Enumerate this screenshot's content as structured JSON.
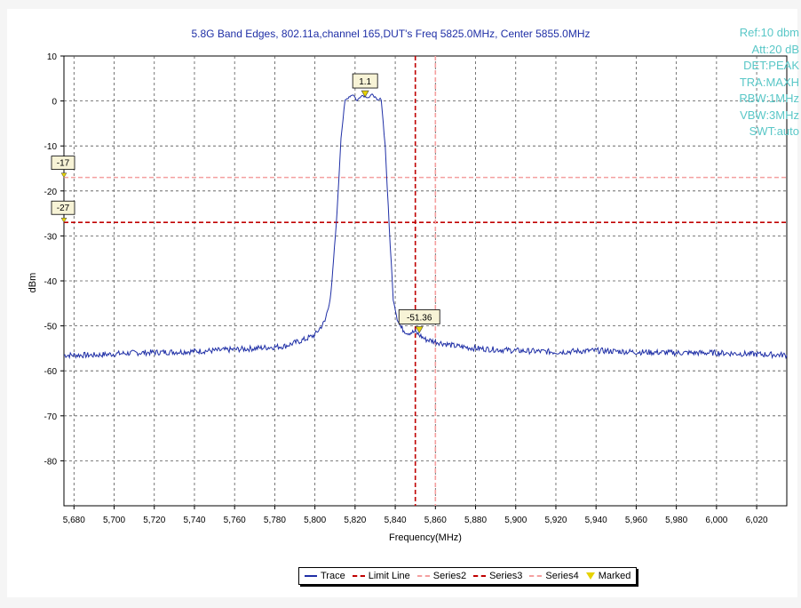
{
  "chart_data": {
    "type": "line",
    "title": "5.8G Band Edges, 802.11a,channel 165,DUT's Freq 5825.0MHz, Center 5855.0MHz",
    "xlabel": "Frequency(MHz)",
    "ylabel": "dBm",
    "xlim": [
      5675,
      6035
    ],
    "ylim": [
      -90,
      10
    ],
    "xticks": [
      5680,
      5700,
      5720,
      5740,
      5760,
      5780,
      5800,
      5820,
      5840,
      5860,
      5880,
      5900,
      5920,
      5940,
      5960,
      5980,
      6000,
      6020
    ],
    "xtick_labels": [
      "5,680",
      "5,700",
      "5,720",
      "5,740",
      "5,760",
      "5,780",
      "5,800",
      "5,820",
      "5,840",
      "5,860",
      "5,880",
      "5,900",
      "5,920",
      "5,940",
      "5,960",
      "5,980",
      "6,000",
      "6,020"
    ],
    "yticks": [
      10,
      0,
      -10,
      -20,
      -30,
      -40,
      -50,
      -60,
      -70,
      -80
    ],
    "ytick_labels": [
      "10",
      "0",
      "-10",
      "-20",
      "-30",
      "-40",
      "-50",
      "-60",
      "-70",
      "-80"
    ],
    "grid": true,
    "series": [
      {
        "name": "Trace",
        "color": "#1f2fa6",
        "x": [
          5675,
          5690,
          5710,
          5730,
          5750,
          5770,
          5785,
          5795,
          5800,
          5805,
          5808,
          5811,
          5813,
          5815,
          5817,
          5819,
          5821,
          5823,
          5825,
          5827,
          5829,
          5831,
          5833,
          5835,
          5837,
          5839,
          5841,
          5843,
          5846,
          5850,
          5855,
          5860,
          5870,
          5880,
          5900,
          5920,
          5940,
          5960,
          5980,
          6000,
          6020,
          6035
        ],
        "y": [
          -56.5,
          -56.5,
          -56,
          -55.8,
          -55.5,
          -55,
          -54.5,
          -53,
          -52,
          -49,
          -43,
          -25,
          -8,
          0,
          1,
          1.5,
          0,
          1.3,
          1.1,
          0.8,
          1.5,
          0,
          0.5,
          -10,
          -28,
          -44,
          -48.5,
          -50.5,
          -51.5,
          -51.4,
          -53,
          -53.5,
          -54.5,
          -55,
          -55.5,
          -55.8,
          -55.5,
          -55.8,
          -56,
          -56,
          -56.3,
          -56.5
        ]
      }
    ],
    "reference_lines": [
      {
        "name": "Limit Line",
        "orientation": "horizontal",
        "value": -27,
        "color": "#c00000",
        "label": "-27"
      },
      {
        "name": "Series2",
        "orientation": "horizontal",
        "value": -17,
        "color": "#f4a0a0",
        "label": "-17"
      },
      {
        "name": "Series3",
        "orientation": "vertical",
        "value": 5850,
        "color": "#c00000"
      },
      {
        "name": "Series4",
        "orientation": "vertical",
        "value": 5860,
        "color": "#f4a0a0"
      }
    ],
    "markers": [
      {
        "x": 5825,
        "y": 1.1,
        "label": "1.1"
      },
      {
        "x": 5852,
        "y": -51.36,
        "label": "-51.36"
      }
    ],
    "legend": {
      "placement": "bottom-center",
      "entries": [
        {
          "label": "Trace",
          "style": "solid",
          "color": "#1f2fa6"
        },
        {
          "label": "Limit Line",
          "style": "dashed",
          "color": "#c00000"
        },
        {
          "label": "Series2",
          "style": "dashed",
          "color": "#f4a0a0"
        },
        {
          "label": "Series3",
          "style": "dashed",
          "color": "#c00000"
        },
        {
          "label": "Series4",
          "style": "dashed",
          "color": "#f4a0a0"
        },
        {
          "label": "Marked",
          "style": "triangle",
          "color": "#e6d200"
        }
      ]
    }
  },
  "settings": {
    "ref": "Ref:10 dbm",
    "att": "Att:20 dB",
    "det": "DET:PEAK",
    "tra": "TRA:MAXH",
    "rbw": "RBW:1MHz",
    "vbw": "VBW:3MHz",
    "swt": "SWT:auto"
  },
  "colors": {
    "title": "#1f2fa6",
    "settings": "#59c7c7",
    "marker_fill": "#e6d200",
    "marker_label_bg": "#f7f3d6"
  }
}
